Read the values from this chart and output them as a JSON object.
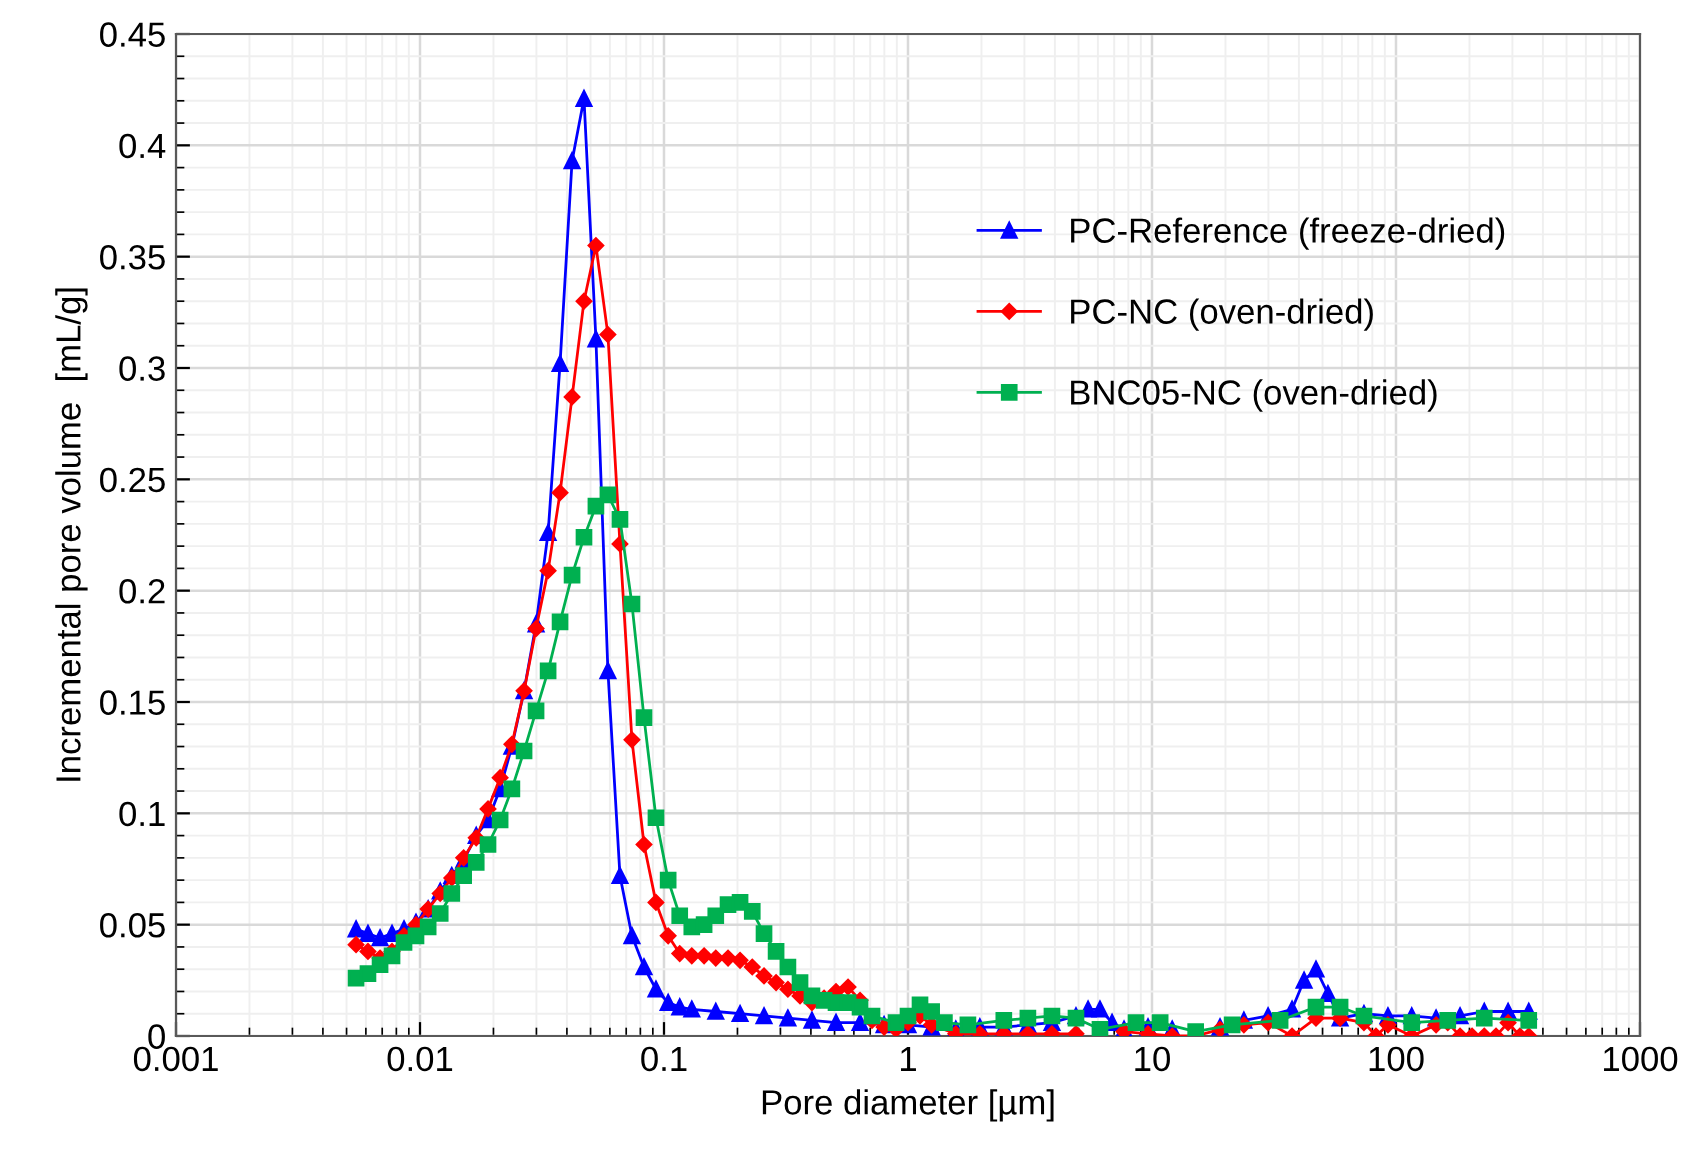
{
  "chart_data": {
    "type": "line",
    "xlabel": "Pore diameter [µm]",
    "ylabel": "Incremental pore volume  [mL/g]",
    "log": "x",
    "xlim": [
      0.001,
      1000
    ],
    "xticks": [
      0.001,
      0.01,
      0.1,
      1,
      10,
      100,
      1000
    ],
    "ylim": [
      0,
      0.45
    ],
    "yticks": [
      0,
      0.05,
      0.1,
      0.15,
      0.2,
      0.25,
      0.3,
      0.35,
      0.4,
      0.45
    ],
    "grid": true,
    "legend": "right",
    "line_style": "solid",
    "series": [
      {
        "name": "PC-Reference (freeze-dried)",
        "color": "#0000ff",
        "marker": "triangle",
        "x": [
          0.00547,
          0.00612,
          0.00686,
          0.00768,
          0.0086,
          0.00963,
          0.0108,
          0.0121,
          0.0135,
          0.0151,
          0.017,
          0.019,
          0.0213,
          0.0238,
          0.0267,
          0.0299,
          0.0335,
          0.0375,
          0.042,
          0.047,
          0.0526,
          0.0589,
          0.066,
          0.0739,
          0.0828,
          0.0927,
          0.104,
          0.116,
          0.13,
          0.163,
          0.205,
          0.257,
          0.322,
          0.404,
          0.507,
          0.636,
          0.798,
          1.0,
          1.25,
          1.57,
          1.97,
          2.47,
          3.1,
          3.89,
          4.88,
          5.47,
          6.12,
          6.86,
          7.68,
          9.63,
          12.1,
          15.1,
          19.0,
          23.8,
          29.9,
          37.5,
          42.0,
          47.0,
          52.6,
          59.0,
          73.9,
          92.7,
          116,
          146,
          183,
          230,
          288,
          350
        ],
        "values": [
          0.048,
          0.046,
          0.044,
          0.046,
          0.048,
          0.051,
          0.057,
          0.065,
          0.072,
          0.079,
          0.09,
          0.097,
          0.111,
          0.13,
          0.155,
          0.185,
          0.226,
          0.302,
          0.393,
          0.421,
          0.313,
          0.164,
          0.072,
          0.045,
          0.031,
          0.021,
          0.015,
          0.013,
          0.012,
          0.011,
          0.01,
          0.009,
          0.008,
          0.007,
          0.006,
          0.006,
          0.005,
          0.005,
          0.004,
          0.003,
          0.004,
          0.004,
          0.005,
          0.006,
          0.009,
          0.012,
          0.012,
          0.006,
          0.003,
          0.004,
          0.003,
          null,
          0.004,
          0.007,
          0.009,
          0.012,
          0.025,
          0.03,
          0.019,
          0.008,
          0.01,
          0.009,
          0.009,
          0.008,
          0.009,
          0.011,
          0.011,
          0.011
        ]
      },
      {
        "name": "PC-NC (oven-dried)",
        "color": "#ff0000",
        "marker": "diamond",
        "x": [
          0.00547,
          0.00612,
          0.00686,
          0.00768,
          0.0086,
          0.00963,
          0.0108,
          0.0121,
          0.0135,
          0.0151,
          0.017,
          0.019,
          0.0213,
          0.0238,
          0.0267,
          0.0299,
          0.0335,
          0.0375,
          0.042,
          0.047,
          0.0526,
          0.0589,
          0.066,
          0.0739,
          0.0828,
          0.0927,
          0.104,
          0.116,
          0.13,
          0.146,
          0.163,
          0.183,
          0.205,
          0.23,
          0.257,
          0.288,
          0.322,
          0.361,
          0.404,
          0.453,
          0.507,
          0.568,
          0.636,
          0.712,
          0.798,
          0.893,
          1.0,
          1.12,
          1.25,
          1.57,
          1.97,
          2.47,
          3.1,
          3.89,
          4.88,
          6.12,
          7.68,
          9.63,
          12.1,
          15.1,
          19.0,
          23.8,
          29.9,
          37.5,
          47.0,
          59.0,
          73.9,
          82.8,
          92.7,
          116,
          146,
          163,
          183,
          205,
          230,
          257,
          288,
          322,
          350
        ],
        "values": [
          0.041,
          0.038,
          0.035,
          0.038,
          0.045,
          0.05,
          0.057,
          0.064,
          0.071,
          0.08,
          0.089,
          0.102,
          0.116,
          0.131,
          0.155,
          0.183,
          0.209,
          0.244,
          0.287,
          0.33,
          0.355,
          0.315,
          0.221,
          0.133,
          0.086,
          0.06,
          0.045,
          0.037,
          0.036,
          0.036,
          0.035,
          0.035,
          0.034,
          0.031,
          0.027,
          0.024,
          0.021,
          0.018,
          0.015,
          0.017,
          0.02,
          0.022,
          0.016,
          0.007,
          0.004,
          0.003,
          0.006,
          0.009,
          0.005,
          0.001,
          0.001,
          0.001,
          0.001,
          0.001,
          0.001,
          null,
          0.002,
          0.001,
          0,
          0,
          0.003,
          0.005,
          0.006,
          0,
          0.008,
          0.008,
          0.006,
          0,
          0.005,
          0,
          0.005,
          0.006,
          0,
          0,
          0,
          0,
          0.006,
          0,
          0
        ]
      },
      {
        "name": "BNC05-NC (oven-dried)",
        "color": "#00b050",
        "marker": "square",
        "x": [
          0.00547,
          0.00612,
          0.00686,
          0.00768,
          0.0086,
          0.00963,
          0.0108,
          0.0121,
          0.0135,
          0.0151,
          0.017,
          0.019,
          0.0213,
          0.0238,
          0.0267,
          0.0299,
          0.0335,
          0.0375,
          0.042,
          0.047,
          0.0526,
          0.0589,
          0.066,
          0.0739,
          0.0828,
          0.0927,
          0.104,
          0.116,
          0.13,
          0.146,
          0.163,
          0.183,
          0.205,
          0.23,
          0.257,
          0.288,
          0.322,
          0.361,
          0.404,
          0.453,
          0.507,
          0.568,
          0.636,
          0.712,
          0.893,
          1.0,
          1.12,
          1.25,
          1.41,
          1.76,
          2.47,
          3.1,
          3.89,
          4.88,
          6.12,
          8.6,
          10.8,
          15.1,
          21.3,
          33.5,
          47.0,
          59.0,
          73.9,
          116,
          163,
          230,
          350
        ],
        "values": [
          0.026,
          0.028,
          0.032,
          0.036,
          0.042,
          0.045,
          0.049,
          0.055,
          0.064,
          0.072,
          0.078,
          0.086,
          0.097,
          0.111,
          0.128,
          0.146,
          0.164,
          0.186,
          0.207,
          0.224,
          0.238,
          0.243,
          0.232,
          0.194,
          0.143,
          0.098,
          0.07,
          0.054,
          0.049,
          0.05,
          0.054,
          0.059,
          0.06,
          0.056,
          0.046,
          0.038,
          0.031,
          0.024,
          0.018,
          0.016,
          0.015,
          0.015,
          0.013,
          0.009,
          0.006,
          0.009,
          0.014,
          0.011,
          0.006,
          0.005,
          0.007,
          0.008,
          0.009,
          0.008,
          0.003,
          0.006,
          0.006,
          0.002,
          0.005,
          0.007,
          0.013,
          0.013,
          0.009,
          0.006,
          0.007,
          0.008,
          0.007
        ]
      }
    ]
  }
}
